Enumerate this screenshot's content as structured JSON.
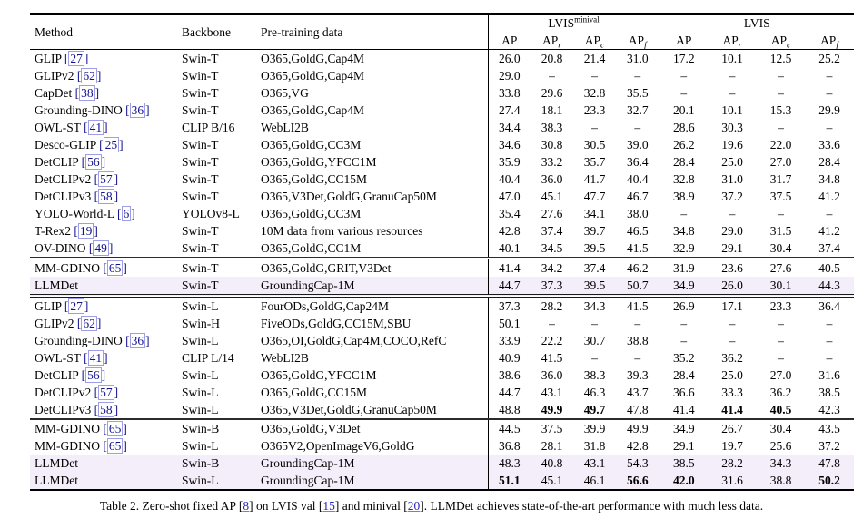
{
  "colors": {
    "highlight_row": "#f4edfa",
    "citation_text": "#14138f",
    "citation_box": "#9e9ee6",
    "caption_link": "#2424bf",
    "rule": "#000000"
  },
  "table": {
    "headers": {
      "method": "Method",
      "backbone": "Backbone",
      "pretrain": "Pre-training data"
    },
    "groups": [
      {
        "label": "LVIS",
        "sup": "minival"
      },
      {
        "label": "LVIS",
        "sup": ""
      }
    ],
    "metrics": [
      {
        "base": "AP",
        "sub": ""
      },
      {
        "base": "AP",
        "sub": "r"
      },
      {
        "base": "AP",
        "sub": "c"
      },
      {
        "base": "AP",
        "sub": "f"
      }
    ],
    "sections": [
      {
        "rows": [
          {
            "method": "GLIP",
            "cite": "27",
            "backbone": "Swin-T",
            "pretrain": "O365,GoldG,Cap4M",
            "values": [
              "26.0",
              "20.8",
              "21.4",
              "31.0",
              "17.2",
              "10.1",
              "12.5",
              "25.2"
            ],
            "bold": [],
            "highlight": false
          },
          {
            "method": "GLIPv2",
            "cite": "62",
            "backbone": "Swin-T",
            "pretrain": "O365,GoldG,Cap4M",
            "values": [
              "29.0",
              "–",
              "–",
              "–",
              "–",
              "–",
              "–",
              "–"
            ],
            "bold": [],
            "highlight": false
          },
          {
            "method": "CapDet",
            "cite": "38",
            "backbone": "Swin-T",
            "pretrain": "O365,VG",
            "values": [
              "33.8",
              "29.6",
              "32.8",
              "35.5",
              "–",
              "–",
              "–",
              "–"
            ],
            "bold": [],
            "highlight": false
          },
          {
            "method": "Grounding-DINO",
            "cite": "36",
            "backbone": "Swin-T",
            "pretrain": "O365,GoldG,Cap4M",
            "values": [
              "27.4",
              "18.1",
              "23.3",
              "32.7",
              "20.1",
              "10.1",
              "15.3",
              "29.9"
            ],
            "bold": [],
            "highlight": false
          },
          {
            "method": "OWL-ST",
            "cite": "41",
            "backbone": "CLIP B/16",
            "pretrain": "WebLI2B",
            "values": [
              "34.4",
              "38.3",
              "–",
              "–",
              "28.6",
              "30.3",
              "–",
              "–"
            ],
            "bold": [],
            "highlight": false
          },
          {
            "method": "Desco-GLIP",
            "cite": "25",
            "backbone": "Swin-T",
            "pretrain": "O365,GoldG,CC3M",
            "values": [
              "34.6",
              "30.8",
              "30.5",
              "39.0",
              "26.2",
              "19.6",
              "22.0",
              "33.6"
            ],
            "bold": [],
            "highlight": false
          },
          {
            "method": "DetCLIP",
            "cite": "56",
            "backbone": "Swin-T",
            "pretrain": "O365,GoldG,YFCC1M",
            "values": [
              "35.9",
              "33.2",
              "35.7",
              "36.4",
              "28.4",
              "25.0",
              "27.0",
              "28.4"
            ],
            "bold": [],
            "highlight": false
          },
          {
            "method": "DetCLIPv2",
            "cite": "57",
            "backbone": "Swin-T",
            "pretrain": "O365,GoldG,CC15M",
            "values": [
              "40.4",
              "36.0",
              "41.7",
              "40.4",
              "32.8",
              "31.0",
              "31.7",
              "34.8"
            ],
            "bold": [],
            "highlight": false
          },
          {
            "method": "DetCLIPv3",
            "cite": "58",
            "backbone": "Swin-T",
            "pretrain": "O365,V3Det,GoldG,GranuCap50M",
            "values": [
              "47.0",
              "45.1",
              "47.7",
              "46.7",
              "38.9",
              "37.2",
              "37.5",
              "41.2"
            ],
            "bold": [],
            "highlight": false
          },
          {
            "method": "YOLO-World-L",
            "cite": "6",
            "backbone": "YOLOv8-L",
            "pretrain": "O365,GoldG,CC3M",
            "values": [
              "35.4",
              "27.6",
              "34.1",
              "38.0",
              "–",
              "–",
              "–",
              "–"
            ],
            "bold": [],
            "highlight": false
          },
          {
            "method": "T-Rex2",
            "cite": "19",
            "backbone": "Swin-T",
            "pretrain": "10M data from various resources",
            "values": [
              "42.8",
              "37.4",
              "39.7",
              "46.5",
              "34.8",
              "29.0",
              "31.5",
              "41.2"
            ],
            "bold": [],
            "highlight": false
          },
          {
            "method": "OV-DINO",
            "cite": "49",
            "backbone": "Swin-T",
            "pretrain": "O365,GoldG,CC1M",
            "values": [
              "40.1",
              "34.5",
              "39.5",
              "41.5",
              "32.9",
              "29.1",
              "30.4",
              "37.4"
            ],
            "bold": [],
            "highlight": false
          }
        ]
      },
      {
        "rows": [
          {
            "method": "MM-GDINO",
            "cite": "65",
            "backbone": "Swin-T",
            "pretrain": "O365,GoldG,GRIT,V3Det",
            "values": [
              "41.4",
              "34.2",
              "37.4",
              "46.2",
              "31.9",
              "23.6",
              "27.6",
              "40.5"
            ],
            "bold": [],
            "highlight": false
          },
          {
            "method": "LLMDet",
            "cite": "",
            "backbone": "Swin-T",
            "pretrain": "GroundingCap-1M",
            "values": [
              "44.7",
              "37.3",
              "39.5",
              "50.7",
              "34.9",
              "26.0",
              "30.1",
              "44.3"
            ],
            "bold": [],
            "highlight": true
          }
        ]
      },
      {
        "rows": [
          {
            "method": "GLIP",
            "cite": "27",
            "backbone": "Swin-L",
            "pretrain": "FourODs,GoldG,Cap24M",
            "values": [
              "37.3",
              "28.2",
              "34.3",
              "41.5",
              "26.9",
              "17.1",
              "23.3",
              "36.4"
            ],
            "bold": [],
            "highlight": false
          },
          {
            "method": "GLIPv2",
            "cite": "62",
            "backbone": "Swin-H",
            "pretrain": "FiveODs,GoldG,CC15M,SBU",
            "values": [
              "50.1",
              "–",
              "–",
              "–",
              "–",
              "–",
              "–",
              "–"
            ],
            "bold": [],
            "highlight": false
          },
          {
            "method": "Grounding-DINO",
            "cite": "36",
            "backbone": "Swin-L",
            "pretrain": "O365,OI,GoldG,Cap4M,COCO,RefC",
            "values": [
              "33.9",
              "22.2",
              "30.7",
              "38.8",
              "–",
              "–",
              "–",
              "–"
            ],
            "bold": [],
            "highlight": false
          },
          {
            "method": "OWL-ST",
            "cite": "41",
            "backbone": "CLIP L/14",
            "pretrain": "WebLI2B",
            "values": [
              "40.9",
              "41.5",
              "–",
              "–",
              "35.2",
              "36.2",
              "–",
              "–"
            ],
            "bold": [],
            "highlight": false
          },
          {
            "method": "DetCLIP",
            "cite": "56",
            "backbone": "Swin-L",
            "pretrain": "O365,GoldG,YFCC1M",
            "values": [
              "38.6",
              "36.0",
              "38.3",
              "39.3",
              "28.4",
              "25.0",
              "27.0",
              "31.6"
            ],
            "bold": [],
            "highlight": false
          },
          {
            "method": "DetCLIPv2",
            "cite": "57",
            "backbone": "Swin-L",
            "pretrain": "O365,GoldG,CC15M",
            "values": [
              "44.7",
              "43.1",
              "46.3",
              "43.7",
              "36.6",
              "33.3",
              "36.2",
              "38.5"
            ],
            "bold": [],
            "highlight": false
          },
          {
            "method": "DetCLIPv3",
            "cite": "58",
            "backbone": "Swin-L",
            "pretrain": "O365,V3Det,GoldG,GranuCap50M",
            "values": [
              "48.8",
              "49.9",
              "49.7",
              "47.8",
              "41.4",
              "41.4",
              "40.5",
              "42.3"
            ],
            "bold": [
              1,
              2,
              5,
              6
            ],
            "highlight": false
          }
        ]
      },
      {
        "rows": [
          {
            "method": "MM-GDINO",
            "cite": "65",
            "backbone": "Swin-B",
            "pretrain": "O365,GoldG,V3Det",
            "values": [
              "44.5",
              "37.5",
              "39.9",
              "49.9",
              "34.9",
              "26.7",
              "30.4",
              "43.5"
            ],
            "bold": [],
            "highlight": false
          },
          {
            "method": "MM-GDINO",
            "cite": "65",
            "backbone": "Swin-L",
            "pretrain": "O365V2,OpenImageV6,GoldG",
            "values": [
              "36.8",
              "28.1",
              "31.8",
              "42.8",
              "29.1",
              "19.7",
              "25.6",
              "37.2"
            ],
            "bold": [],
            "highlight": false
          },
          {
            "method": "LLMDet",
            "cite": "",
            "backbone": "Swin-B",
            "pretrain": "GroundingCap-1M",
            "values": [
              "48.3",
              "40.8",
              "43.1",
              "54.3",
              "38.5",
              "28.2",
              "34.3",
              "47.8"
            ],
            "bold": [],
            "highlight": true
          },
          {
            "method": "LLMDet",
            "cite": "",
            "backbone": "Swin-L",
            "pretrain": "GroundingCap-1M",
            "values": [
              "51.1",
              "45.1",
              "46.1",
              "56.6",
              "42.0",
              "31.6",
              "38.8",
              "50.2"
            ],
            "bold": [
              0,
              3,
              4,
              7
            ],
            "highlight": true
          }
        ]
      }
    ]
  },
  "caption": {
    "segments": [
      {
        "text": "Table 2. Zero-shot fixed AP "
      },
      {
        "cite": "8"
      },
      {
        "text": " on LVIS val "
      },
      {
        "cite": "15"
      },
      {
        "text": " and minival "
      },
      {
        "cite": "20"
      },
      {
        "text": ". LLMDet achieves state-of-the-art performance with much less data."
      }
    ]
  }
}
